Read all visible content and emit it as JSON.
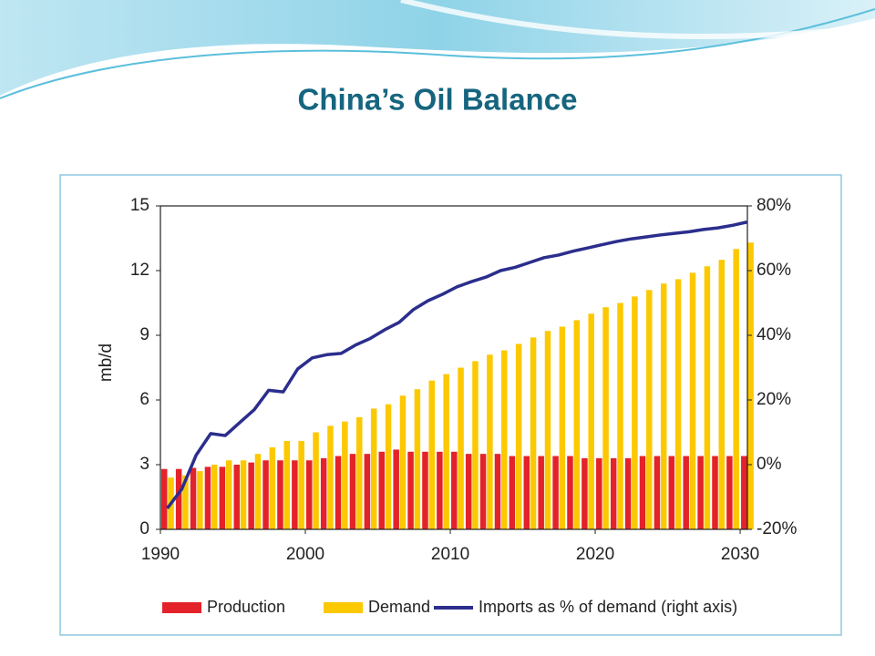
{
  "chart_data": {
    "type": "bar",
    "title": "China’s Oil Balance",
    "ylabel": "mb/d",
    "x": [
      1990,
      1991,
      1992,
      1993,
      1994,
      1995,
      1996,
      1997,
      1998,
      1999,
      2000,
      2001,
      2002,
      2003,
      2004,
      2005,
      2006,
      2007,
      2008,
      2009,
      2010,
      2011,
      2012,
      2013,
      2014,
      2015,
      2016,
      2017,
      2018,
      2019,
      2020,
      2021,
      2022,
      2023,
      2024,
      2025,
      2026,
      2027,
      2028,
      2029,
      2030
    ],
    "xlim": [
      1990,
      2030.5
    ],
    "xticks": [
      1990,
      2000,
      2010,
      2020,
      2030
    ],
    "ylim": [
      0,
      15
    ],
    "yticks": [
      0,
      3,
      6,
      9,
      12,
      15
    ],
    "y2lim": [
      -20,
      80
    ],
    "y2ticks": [
      {
        "value": -20,
        "label": "-20%"
      },
      {
        "value": 0,
        "label": "0%"
      },
      {
        "value": 20,
        "label": "20%"
      },
      {
        "value": 40,
        "label": "40%"
      },
      {
        "value": 60,
        "label": "60%"
      },
      {
        "value": 80,
        "label": "80%"
      }
    ],
    "series": [
      {
        "name": "Production",
        "type": "bar",
        "color": "#e42229",
        "values": [
          2.8,
          2.8,
          2.85,
          2.9,
          2.9,
          3.0,
          3.1,
          3.2,
          3.2,
          3.2,
          3.2,
          3.3,
          3.4,
          3.5,
          3.5,
          3.6,
          3.7,
          3.6,
          3.6,
          3.6,
          3.6,
          3.5,
          3.5,
          3.5,
          3.4,
          3.4,
          3.4,
          3.4,
          3.4,
          3.3,
          3.3,
          3.3,
          3.3,
          3.4,
          3.4,
          3.4,
          3.4,
          3.4,
          3.4,
          3.4,
          3.4
        ]
      },
      {
        "name": "Demand",
        "type": "bar",
        "color": "#fcc800",
        "values": [
          2.4,
          2.5,
          2.7,
          3.0,
          3.2,
          3.2,
          3.5,
          3.8,
          4.1,
          4.1,
          4.5,
          4.8,
          5.0,
          5.2,
          5.6,
          5.8,
          6.2,
          6.5,
          6.9,
          7.2,
          7.5,
          7.8,
          8.1,
          8.3,
          8.6,
          8.9,
          9.2,
          9.4,
          9.7,
          10.0,
          10.3,
          10.5,
          10.8,
          11.1,
          11.4,
          11.6,
          11.9,
          12.2,
          12.5,
          13.0,
          13.3
        ]
      },
      {
        "name": "Imports as % of demand (right axis)",
        "type": "line",
        "axis": "y2",
        "color": "#2b2e8c",
        "values": [
          -13.5,
          -7.6,
          3,
          9.6,
          9,
          13,
          17,
          23,
          22.5,
          29.6,
          33,
          34,
          34.4,
          37,
          39,
          41.7,
          44,
          48,
          50.7,
          52.7,
          55,
          56.6,
          58,
          60,
          61,
          62.5,
          64,
          64.8,
          66,
          67,
          68,
          69,
          69.8,
          70.4,
          71,
          71.5,
          72,
          72.7,
          73.2,
          74,
          75
        ]
      }
    ]
  }
}
